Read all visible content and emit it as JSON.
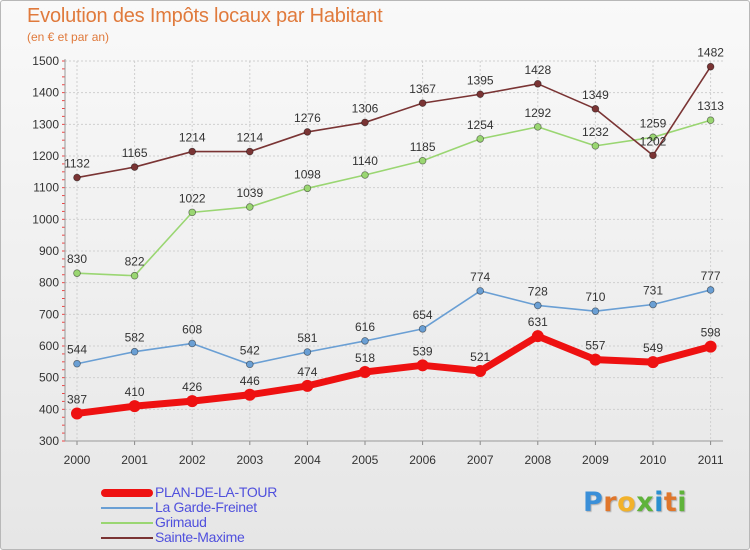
{
  "title": "Evolution des Impôts locaux par Habitant",
  "subtitle": "(en € et par an)",
  "logo": {
    "text": "Proxiti",
    "letters": [
      "P",
      "r",
      "o",
      "x",
      "i",
      "t",
      "i"
    ],
    "colors": [
      "#3a8fd8",
      "#e0762b",
      "#f2b22a",
      "#5fb33a",
      "#2a8fd0",
      "#e0762b",
      "#5fb33a"
    ]
  },
  "chart_data": {
    "type": "line",
    "x": [
      "2000",
      "2001",
      "2002",
      "2003",
      "2004",
      "2005",
      "2006",
      "2007",
      "2008",
      "2009",
      "2010",
      "2011"
    ],
    "ylim": [
      300,
      1500
    ],
    "yticks": [
      300,
      400,
      500,
      600,
      700,
      800,
      900,
      1000,
      1100,
      1200,
      1300,
      1400,
      1500
    ],
    "grid": true,
    "legend_position": "bottom-left",
    "series": [
      {
        "name": "PLAN-DE-LA-TOUR",
        "color": "#ee1111",
        "emphasis": true,
        "values": [
          387,
          410,
          426,
          446,
          474,
          518,
          539,
          521,
          631,
          557,
          549,
          598
        ]
      },
      {
        "name": "La Garde-Freinet",
        "color": "#6a9fd4",
        "emphasis": false,
        "values": [
          544,
          582,
          608,
          542,
          581,
          616,
          654,
          774,
          728,
          710,
          731,
          777
        ]
      },
      {
        "name": "Grimaud",
        "color": "#9ad672",
        "emphasis": false,
        "values": [
          830,
          822,
          1022,
          1039,
          1098,
          1140,
          1185,
          1254,
          1292,
          1232,
          1259,
          1313
        ]
      },
      {
        "name": "Sainte-Maxime",
        "color": "#7a3434",
        "emphasis": false,
        "values": [
          1132,
          1165,
          1214,
          1214,
          1276,
          1306,
          1367,
          1395,
          1428,
          1349,
          1202,
          1482
        ]
      }
    ]
  }
}
